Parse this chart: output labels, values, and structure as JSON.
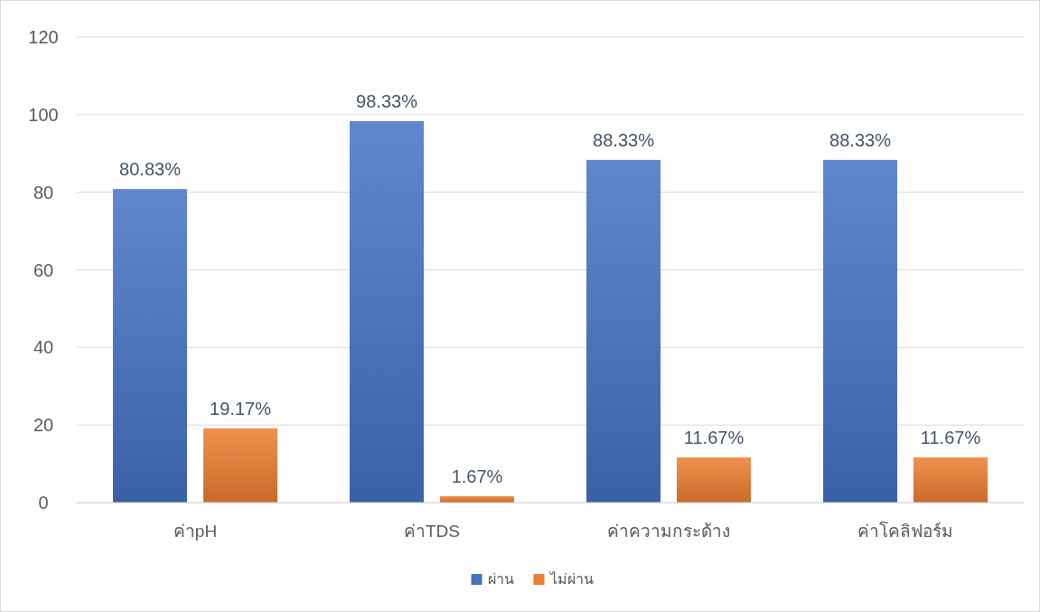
{
  "chart_data": {
    "type": "bar",
    "categories": [
      "ค่าpH",
      "ค่าTDS",
      "ค่าความกระด้าง",
      "ค่าโคลิฟอร์ม"
    ],
    "series": [
      {
        "name": "ผ่าน",
        "color": "#4472c4",
        "values": [
          80.83,
          98.33,
          88.33,
          88.33
        ],
        "value_labels": [
          "80.83%",
          "98.33%",
          "88.33%",
          "88.33%"
        ]
      },
      {
        "name": "ไม่ผ่าน",
        "color": "#ed7d31",
        "values": [
          19.17,
          1.67,
          11.67,
          11.67
        ],
        "value_labels": [
          "19.17%",
          "1.67%",
          "11.67%",
          "11.67%"
        ]
      }
    ],
    "ylim": [
      0,
      120
    ],
    "yticks": [
      0,
      20,
      40,
      60,
      80,
      100,
      120
    ],
    "grid": "y",
    "legend": "bottom"
  }
}
